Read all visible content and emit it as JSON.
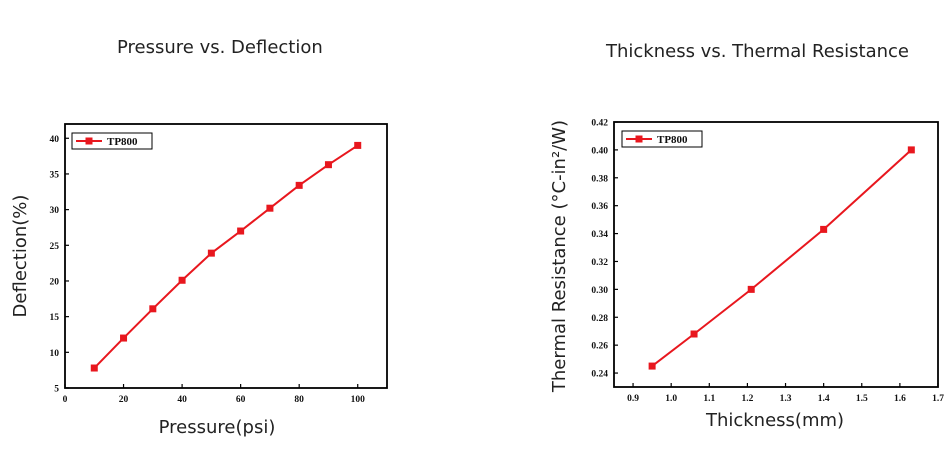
{
  "chart_data": [
    {
      "type": "line",
      "title": "Pressure vs. Deflection",
      "xlabel": "Pressure(psi)",
      "ylabel": "Deflection(%)",
      "xlim": [
        0,
        110
      ],
      "ylim": [
        5,
        42
      ],
      "xticks": [
        0,
        20,
        40,
        60,
        80,
        100
      ],
      "yticks": [
        5,
        10,
        15,
        20,
        25,
        30,
        35,
        40
      ],
      "xtick_labels": [
        "0",
        "20",
        "40",
        "60",
        "80",
        "100"
      ],
      "ytick_labels": [
        "5",
        "10",
        "15",
        "20",
        "25",
        "30",
        "35",
        "40"
      ],
      "legend_position": "top-left",
      "grid": false,
      "series": [
        {
          "name": "TP800",
          "color": "#e8171e",
          "x": [
            10,
            20,
            30,
            40,
            50,
            60,
            70,
            80,
            90,
            100
          ],
          "y": [
            7.8,
            12.0,
            16.1,
            20.1,
            23.9,
            27.0,
            30.2,
            33.4,
            36.3,
            39.0
          ]
        }
      ]
    },
    {
      "type": "line",
      "title": "Thickness vs. Thermal Resistance",
      "xlabel": "Thickness(mm)",
      "ylabel": "Thermal Resistance (°C-in²/W)",
      "xlim": [
        0.85,
        1.7
      ],
      "ylim": [
        0.23,
        0.42
      ],
      "xticks": [
        0.9,
        1.0,
        1.1,
        1.2,
        1.3,
        1.4,
        1.5,
        1.6,
        1.7
      ],
      "yticks": [
        0.24,
        0.26,
        0.28,
        0.3,
        0.32,
        0.34,
        0.36,
        0.38,
        0.4,
        0.42
      ],
      "xtick_labels": [
        "0.9",
        "1.0",
        "1.1",
        "1.2",
        "1.3",
        "1.4",
        "1.5",
        "1.6",
        "1.7"
      ],
      "ytick_labels": [
        "0.24",
        "0.26",
        "0.28",
        "0.30",
        "0.32",
        "0.34",
        "0.36",
        "0.38",
        "0.40",
        "0.42"
      ],
      "legend_position": "top-left",
      "grid": false,
      "series": [
        {
          "name": "TP800",
          "color": "#e8171e",
          "x": [
            0.95,
            1.06,
            1.21,
            1.4,
            1.63
          ],
          "y": [
            0.245,
            0.268,
            0.3,
            0.343,
            0.4
          ]
        }
      ]
    }
  ]
}
